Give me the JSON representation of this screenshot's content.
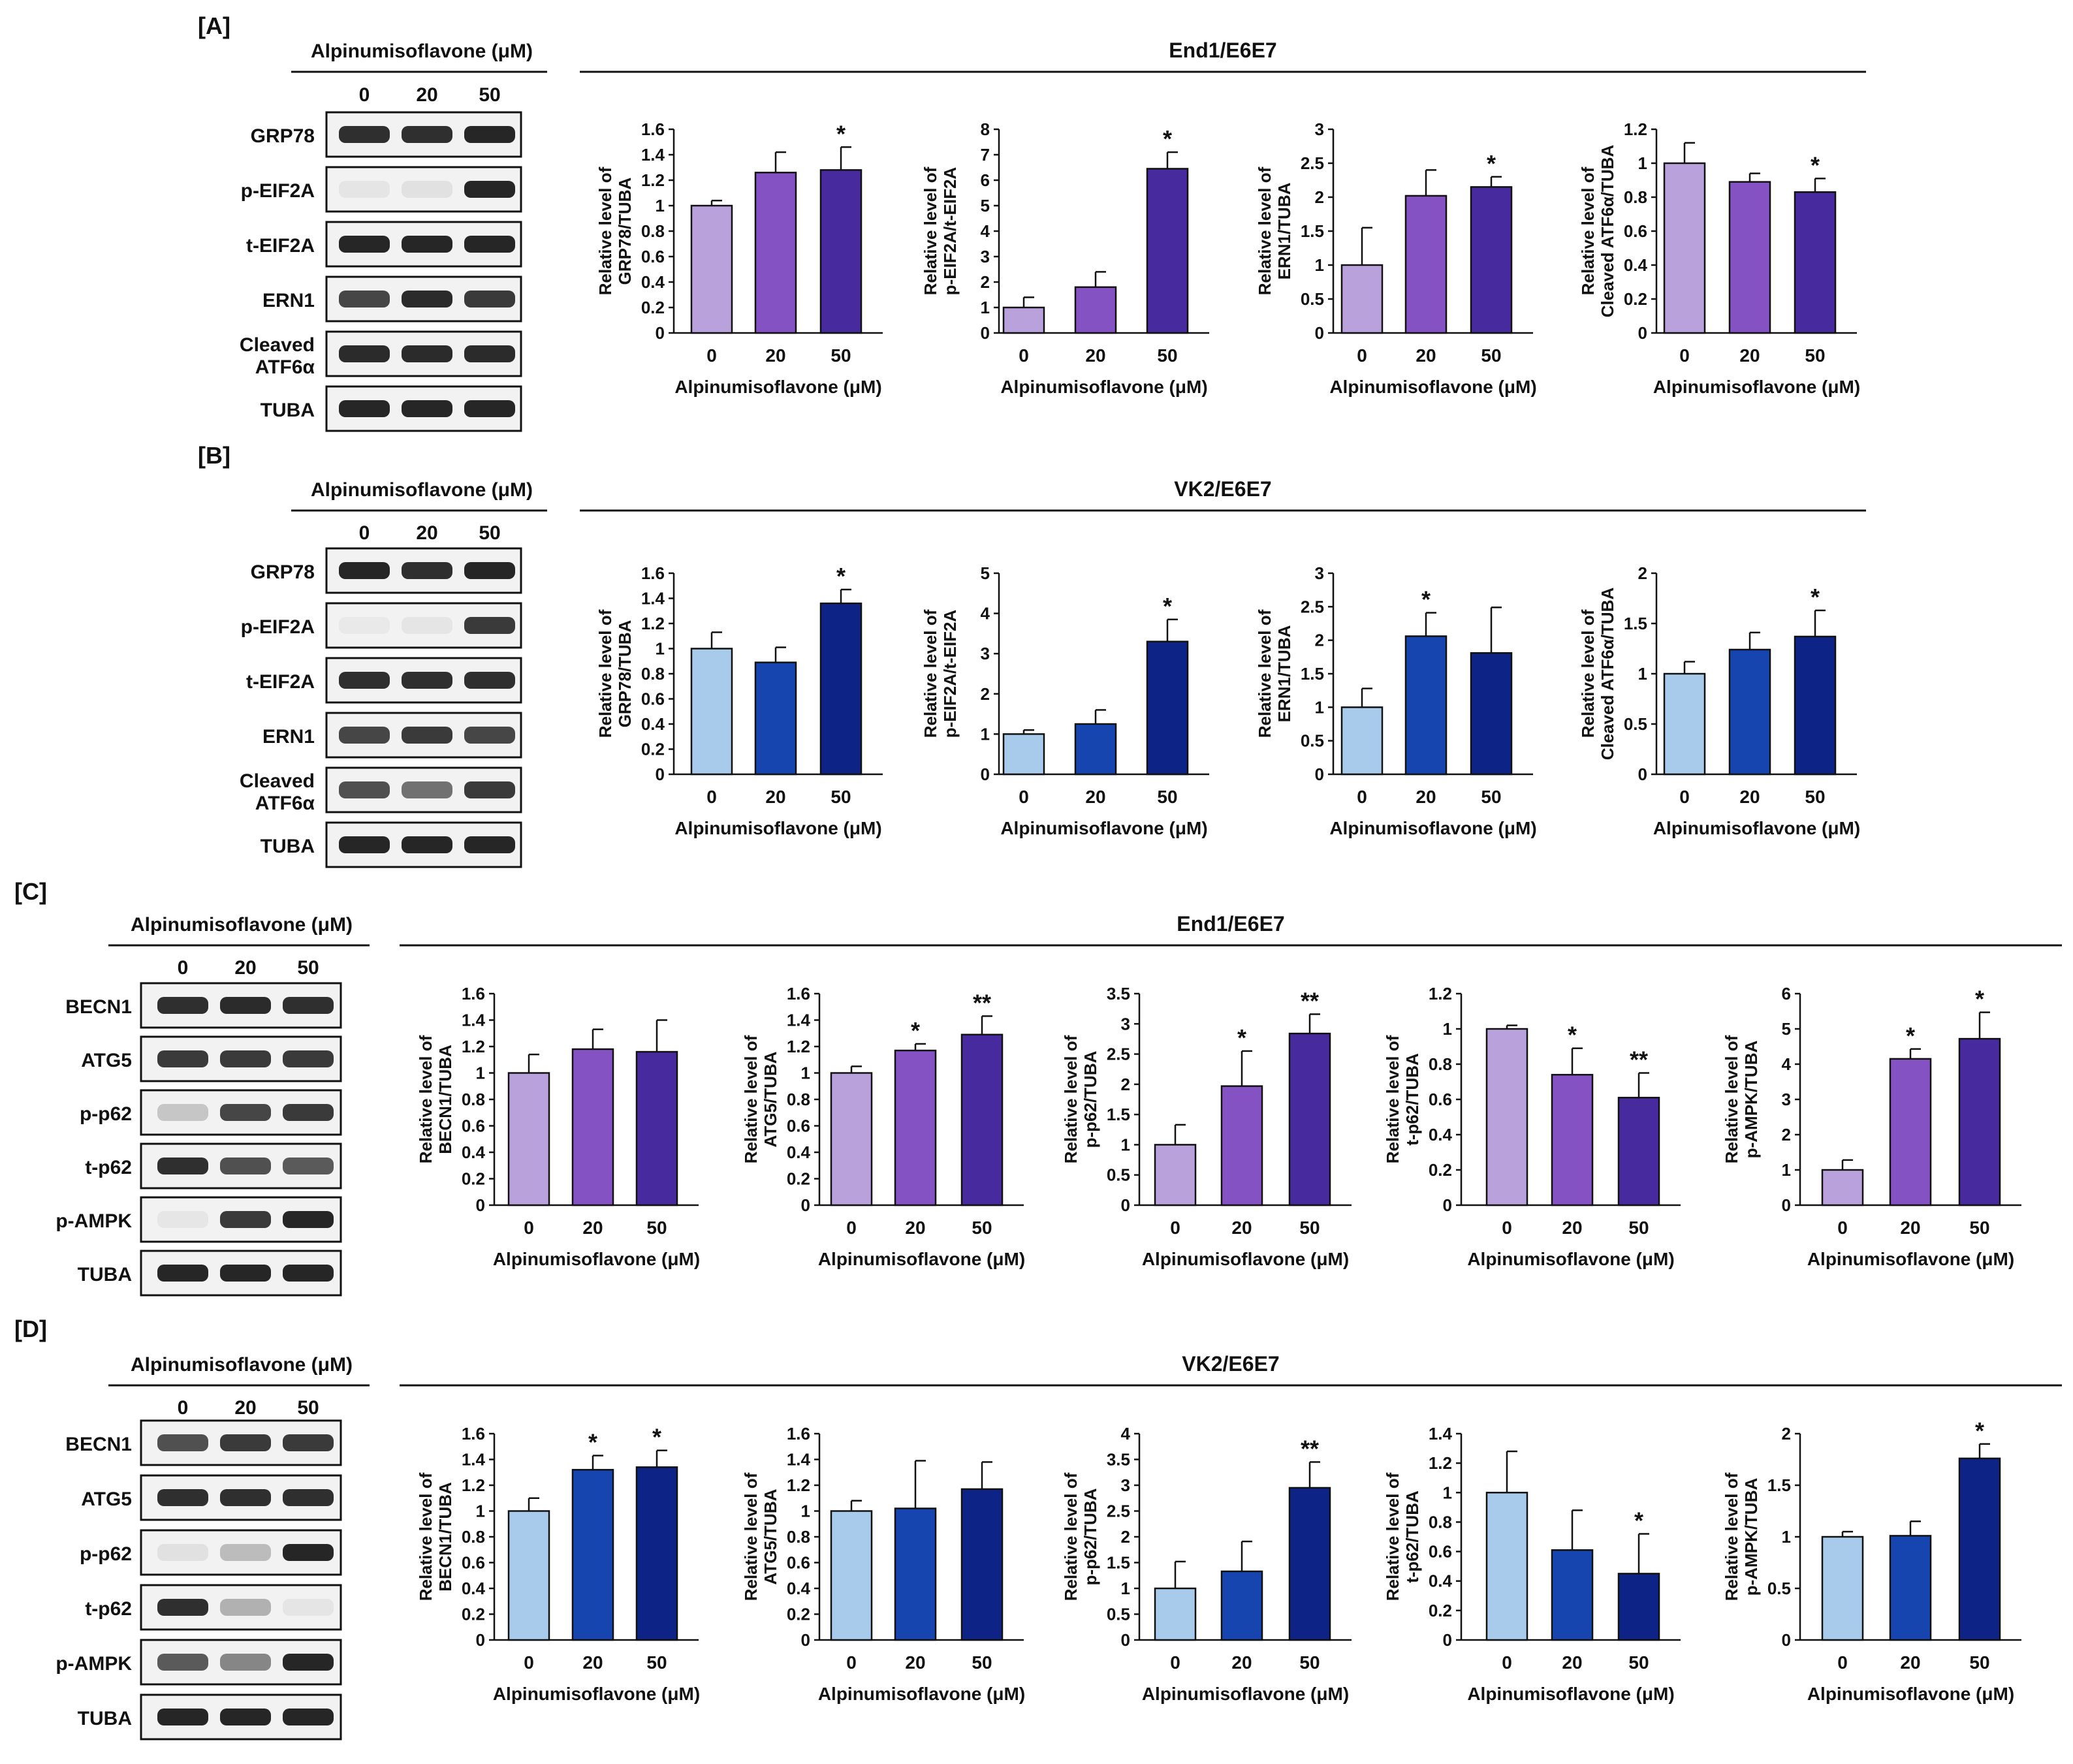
{
  "panels": [
    {
      "label": "[A]",
      "cell_line": "End1/E6E7",
      "blot_header": "Alpinumisoflavone (μM)",
      "lanes": [
        "0",
        "20",
        "50"
      ],
      "rows": [
        "GRP78",
        "p-EIF2A",
        "t-EIF2A",
        "ERN1",
        "Cleaved ATF6α",
        "TUBA"
      ]
    },
    {
      "label": "[B]",
      "cell_line": "VK2/E6E7",
      "blot_header": "Alpinumisoflavone (μM)",
      "lanes": [
        "0",
        "20",
        "50"
      ],
      "rows": [
        "GRP78",
        "p-EIF2A",
        "t-EIF2A",
        "ERN1",
        "Cleaved ATF6α",
        "TUBA"
      ]
    },
    {
      "label": "[C]",
      "cell_line": "End1/E6E7",
      "blot_header": "Alpinumisoflavone (μM)",
      "lanes": [
        "0",
        "20",
        "50"
      ],
      "rows": [
        "BECN1",
        "ATG5",
        "p-p62",
        "t-p62",
        "p-AMPK",
        "TUBA"
      ]
    },
    {
      "label": "[D]",
      "cell_line": "VK2/E6E7",
      "blot_header": "Alpinumisoflavone (μM)",
      "lanes": [
        "0",
        "20",
        "50"
      ],
      "rows": [
        "BECN1",
        "ATG5",
        "p-p62",
        "t-p62",
        "p-AMPK",
        "TUBA"
      ]
    }
  ],
  "colors": {
    "purple": [
      "#b9a2dc",
      "#8552c4",
      "#472a9d"
    ],
    "blue": [
      "#a9cbeb",
      "#1745b0",
      "#0d2386"
    ],
    "blot_bg": "#f2f2f2",
    "band": "#1a1a1a"
  },
  "chart_data": [
    {
      "panel": "A",
      "type": "bar",
      "categories": [
        "0",
        "20",
        "50"
      ],
      "values": [
        1.0,
        1.26,
        1.28
      ],
      "errors": [
        0.04,
        0.16,
        0.18
      ],
      "sig": [
        "",
        "",
        "*"
      ],
      "ylim": [
        0,
        1.6
      ],
      "yticks": [
        "0",
        "0.2",
        "0.4",
        "0.6",
        "0.8",
        "1",
        "1.2",
        "1.4",
        "1.6"
      ],
      "ylabel": [
        "Relative level of",
        "GRP78/TUBA"
      ],
      "xlabel": "Alpinumisoflavone (μM)",
      "palette": "purple"
    },
    {
      "panel": "A",
      "type": "bar",
      "categories": [
        "0",
        "20",
        "50"
      ],
      "values": [
        1.0,
        1.8,
        6.45
      ],
      "errors": [
        0.4,
        0.6,
        0.65
      ],
      "sig": [
        "",
        "",
        "*"
      ],
      "ylim": [
        0,
        8
      ],
      "yticks": [
        "0",
        "1",
        "2",
        "3",
        "4",
        "5",
        "6",
        "7",
        "8"
      ],
      "ylabel": [
        "Relative level of",
        "p-EIF2A/t-EIF2A"
      ],
      "xlabel": "Alpinumisoflavone (μM)",
      "palette": "purple"
    },
    {
      "panel": "A",
      "type": "bar",
      "categories": [
        "0",
        "20",
        "50"
      ],
      "values": [
        1.0,
        2.02,
        2.15
      ],
      "errors": [
        0.55,
        0.38,
        0.15
      ],
      "sig": [
        "",
        "",
        "*"
      ],
      "ylim": [
        0,
        3
      ],
      "yticks": [
        "0",
        "0.5",
        "1",
        "1.5",
        "2",
        "2.5",
        "3"
      ],
      "ylabel": [
        "Relative level of",
        "ERN1/TUBA"
      ],
      "xlabel": "Alpinumisoflavone (μM)",
      "palette": "purple"
    },
    {
      "panel": "A",
      "type": "bar",
      "categories": [
        "0",
        "20",
        "50"
      ],
      "values": [
        1.0,
        0.89,
        0.83
      ],
      "errors": [
        0.12,
        0.05,
        0.08
      ],
      "sig": [
        "",
        "",
        "*"
      ],
      "ylim": [
        0,
        1.2
      ],
      "yticks": [
        "0",
        "0.2",
        "0.4",
        "0.6",
        "0.8",
        "1",
        "1.2"
      ],
      "ylabel": [
        "Relative level of",
        "Cleaved ATF6α/TUBA"
      ],
      "xlabel": "Alpinumisoflavone (μM)",
      "palette": "purple"
    },
    {
      "panel": "B",
      "type": "bar",
      "categories": [
        "0",
        "20",
        "50"
      ],
      "values": [
        1.0,
        0.89,
        1.36
      ],
      "errors": [
        0.13,
        0.12,
        0.11
      ],
      "sig": [
        "",
        "",
        "*"
      ],
      "ylim": [
        0,
        1.6
      ],
      "yticks": [
        "0",
        "0.2",
        "0.4",
        "0.6",
        "0.8",
        "1",
        "1.2",
        "1.4",
        "1.6"
      ],
      "ylabel": [
        "Relative level of",
        "GRP78/TUBA"
      ],
      "xlabel": "Alpinumisoflavone (μM)",
      "palette": "blue"
    },
    {
      "panel": "B",
      "type": "bar",
      "categories": [
        "0",
        "20",
        "50"
      ],
      "values": [
        1.0,
        1.25,
        3.3
      ],
      "errors": [
        0.1,
        0.35,
        0.55
      ],
      "sig": [
        "",
        "",
        "*"
      ],
      "ylim": [
        0,
        5
      ],
      "yticks": [
        "0",
        "1",
        "2",
        "3",
        "4",
        "5"
      ],
      "ylabel": [
        "Relative level of",
        "p-EIF2A/t-EIF2A"
      ],
      "xlabel": "Alpinumisoflavone (μM)",
      "palette": "blue"
    },
    {
      "panel": "B",
      "type": "bar",
      "categories": [
        "0",
        "20",
        "50"
      ],
      "values": [
        1.0,
        2.06,
        1.81
      ],
      "errors": [
        0.28,
        0.35,
        0.68
      ],
      "sig": [
        "",
        "*",
        ""
      ],
      "ylim": [
        0,
        3
      ],
      "yticks": [
        "0",
        "0.5",
        "1",
        "1.5",
        "2",
        "2.5",
        "3"
      ],
      "ylabel": [
        "Relative level of",
        "ERN1/TUBA"
      ],
      "xlabel": "Alpinumisoflavone (μM)",
      "palette": "blue"
    },
    {
      "panel": "B",
      "type": "bar",
      "categories": [
        "0",
        "20",
        "50"
      ],
      "values": [
        1.0,
        1.24,
        1.37
      ],
      "errors": [
        0.12,
        0.17,
        0.26
      ],
      "sig": [
        "",
        "",
        "*"
      ],
      "ylim": [
        0,
        2
      ],
      "yticks": [
        "0",
        "0.5",
        "1",
        "1.5",
        "2"
      ],
      "ylabel": [
        "Relative level of",
        "Cleaved ATF6α/TUBA"
      ],
      "xlabel": "Alpinumisoflavone (μM)",
      "palette": "blue"
    },
    {
      "panel": "C",
      "type": "bar",
      "categories": [
        "0",
        "20",
        "50"
      ],
      "values": [
        1.0,
        1.18,
        1.16
      ],
      "errors": [
        0.14,
        0.15,
        0.24
      ],
      "sig": [
        "",
        "",
        ""
      ],
      "ylim": [
        0,
        1.6
      ],
      "yticks": [
        "0",
        "0.2",
        "0.4",
        "0.6",
        "0.8",
        "1",
        "1.2",
        "1.4",
        "1.6"
      ],
      "ylabel": [
        "Relative level of",
        "BECN1/TUBA"
      ],
      "xlabel": "Alpinumisoflavone (μM)",
      "palette": "purple"
    },
    {
      "panel": "C",
      "type": "bar",
      "categories": [
        "0",
        "20",
        "50"
      ],
      "values": [
        1.0,
        1.17,
        1.29
      ],
      "errors": [
        0.05,
        0.05,
        0.14
      ],
      "sig": [
        "",
        "*",
        "**"
      ],
      "ylim": [
        0,
        1.6
      ],
      "yticks": [
        "0",
        "0.2",
        "0.4",
        "0.6",
        "0.8",
        "1",
        "1.2",
        "1.4",
        "1.6"
      ],
      "ylabel": [
        "Relative level of",
        "ATG5/TUBA"
      ],
      "xlabel": "Alpinumisoflavone (μM)",
      "palette": "purple"
    },
    {
      "panel": "C",
      "type": "bar",
      "categories": [
        "0",
        "20",
        "50"
      ],
      "values": [
        1.0,
        1.97,
        2.84
      ],
      "errors": [
        0.33,
        0.58,
        0.32
      ],
      "sig": [
        "",
        "*",
        "**"
      ],
      "ylim": [
        0,
        3.5
      ],
      "yticks": [
        "0",
        "0.5",
        "1",
        "1.5",
        "2",
        "2.5",
        "3",
        "3.5"
      ],
      "ylabel": [
        "Relative level of",
        "p-p62/TUBA"
      ],
      "xlabel": "Alpinumisoflavone (μM)",
      "palette": "purple"
    },
    {
      "panel": "C",
      "type": "bar",
      "categories": [
        "0",
        "20",
        "50"
      ],
      "values": [
        1.0,
        0.74,
        0.61
      ],
      "errors": [
        0.02,
        0.15,
        0.14
      ],
      "sig": [
        "",
        "*",
        "**"
      ],
      "ylim": [
        0,
        1.2
      ],
      "yticks": [
        "0",
        "0.2",
        "0.4",
        "0.6",
        "0.8",
        "1",
        "1.2"
      ],
      "ylabel": [
        "Relative level of",
        "t-p62/TUBA"
      ],
      "xlabel": "Alpinumisoflavone (μM)",
      "palette": "purple"
    },
    {
      "panel": "C",
      "type": "bar",
      "categories": [
        "0",
        "20",
        "50"
      ],
      "values": [
        1.0,
        4.15,
        4.72
      ],
      "errors": [
        0.28,
        0.28,
        0.75
      ],
      "sig": [
        "",
        "*",
        "*"
      ],
      "ylim": [
        0,
        6
      ],
      "yticks": [
        "0",
        "1",
        "2",
        "3",
        "4",
        "5",
        "6"
      ],
      "ylabel": [
        "Relative level of",
        "p-AMPK/TUBA"
      ],
      "xlabel": "Alpinumisoflavone (μM)",
      "palette": "purple"
    },
    {
      "panel": "D",
      "type": "bar",
      "categories": [
        "0",
        "20",
        "50"
      ],
      "values": [
        1.0,
        1.32,
        1.34
      ],
      "errors": [
        0.1,
        0.11,
        0.13
      ],
      "sig": [
        "",
        "*",
        "*"
      ],
      "ylim": [
        0,
        1.6
      ],
      "yticks": [
        "0",
        "0.2",
        "0.4",
        "0.6",
        "0.8",
        "1",
        "1.2",
        "1.4",
        "1.6"
      ],
      "ylabel": [
        "Relative level of",
        "BECN1/TUBA"
      ],
      "xlabel": "Alpinumisoflavone (μM)",
      "palette": "blue"
    },
    {
      "panel": "D",
      "type": "bar",
      "categories": [
        "0",
        "20",
        "50"
      ],
      "values": [
        1.0,
        1.02,
        1.17
      ],
      "errors": [
        0.08,
        0.37,
        0.21
      ],
      "sig": [
        "",
        "",
        ""
      ],
      "ylim": [
        0,
        1.6
      ],
      "yticks": [
        "0",
        "0.2",
        "0.4",
        "0.6",
        "0.8",
        "1",
        "1.2",
        "1.4",
        "1.6"
      ],
      "ylabel": [
        "Relative level of",
        "ATG5/TUBA"
      ],
      "xlabel": "Alpinumisoflavone (μM)",
      "palette": "blue"
    },
    {
      "panel": "D",
      "type": "bar",
      "categories": [
        "0",
        "20",
        "50"
      ],
      "values": [
        1.0,
        1.33,
        2.95
      ],
      "errors": [
        0.52,
        0.58,
        0.5
      ],
      "sig": [
        "",
        "",
        "**"
      ],
      "ylim": [
        0,
        4
      ],
      "yticks": [
        "0",
        "0.5",
        "1",
        "1.5",
        "2",
        "2.5",
        "3",
        "3.5",
        "4"
      ],
      "ylabel": [
        "Relative level of",
        "p-p62/TUBA"
      ],
      "xlabel": "Alpinumisoflavone (μM)",
      "palette": "blue"
    },
    {
      "panel": "D",
      "type": "bar",
      "categories": [
        "0",
        "20",
        "50"
      ],
      "values": [
        1.0,
        0.61,
        0.45
      ],
      "errors": [
        0.28,
        0.27,
        0.27
      ],
      "sig": [
        "",
        "",
        "*"
      ],
      "ylim": [
        0,
        1.4
      ],
      "yticks": [
        "0",
        "0.2",
        "0.4",
        "0.6",
        "0.8",
        "1",
        "1.2",
        "1.4"
      ],
      "ylabel": [
        "Relative level of",
        "t-p62/TUBA"
      ],
      "xlabel": "Alpinumisoflavone (μM)",
      "palette": "blue"
    },
    {
      "panel": "D",
      "type": "bar",
      "categories": [
        "0",
        "20",
        "50"
      ],
      "values": [
        1.0,
        1.01,
        1.76
      ],
      "errors": [
        0.05,
        0.14,
        0.14
      ],
      "sig": [
        "",
        "",
        "*"
      ],
      "ylim": [
        0,
        2
      ],
      "yticks": [
        "0",
        "0.5",
        "1",
        "1.5",
        "2"
      ],
      "ylabel": [
        "Relative level of",
        "p-AMPK/TUBA"
      ],
      "xlabel": "Alpinumisoflavone (μM)",
      "palette": "blue"
    }
  ]
}
